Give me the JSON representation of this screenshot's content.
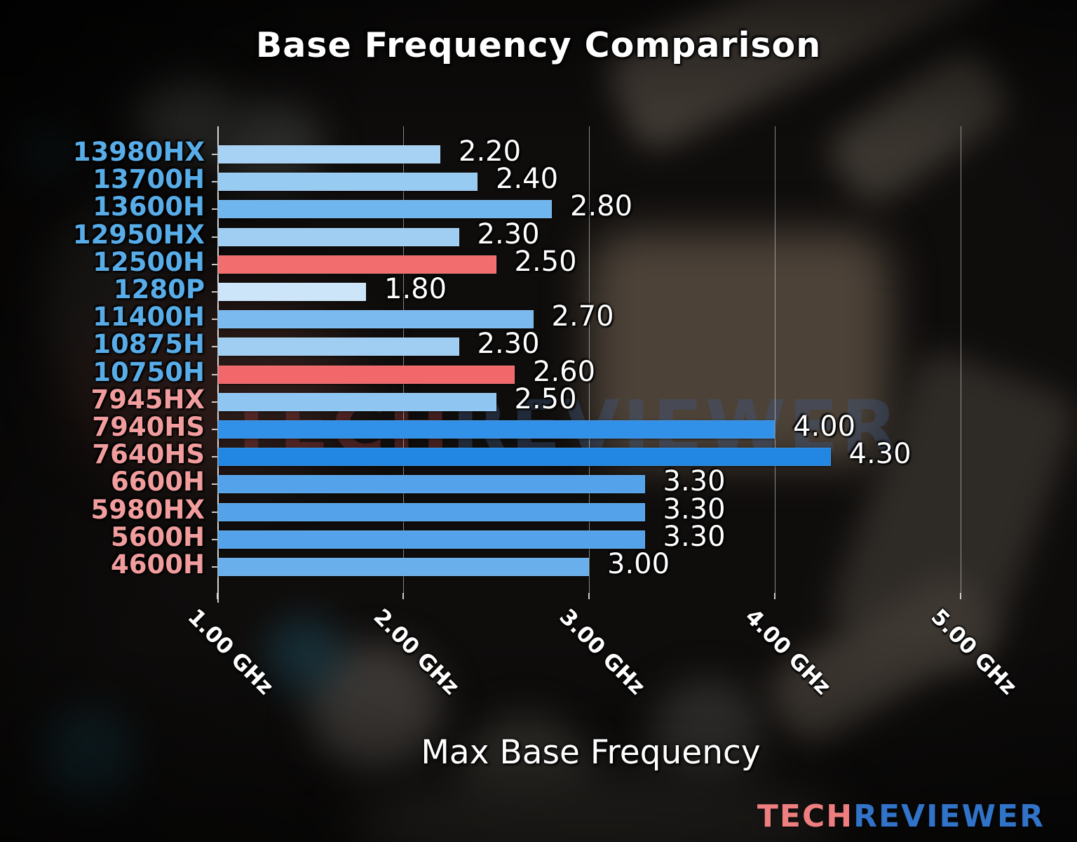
{
  "title": "Base Frequency Comparison",
  "watermark": {
    "part1": "TECH",
    "part2": "REVIEWER",
    "part1_color": "rgba(140,58,58,0.75)",
    "part2_color": "rgba(62,88,128,0.7)"
  },
  "logo": {
    "part1": "TECH",
    "part2": "REVIEWER",
    "part1_color": "#ee7e7f",
    "part2_color": "#3173c8"
  },
  "colors": {
    "value_label": "#ffffff",
    "grid": "rgba(235,235,235,0.55)",
    "intel_label": "#58ade9",
    "amd_label": "#f29d9d",
    "highlight_bar": "#f26d6e"
  },
  "chart_data": {
    "type": "bar",
    "orientation": "horizontal",
    "title": "Base Frequency Comparison",
    "xlabel": "Max Base Frequency",
    "ylabel": "",
    "xlim": [
      1.0,
      5.2
    ],
    "grid": true,
    "x_tick_values": [
      1.0,
      2.0,
      3.0,
      4.0,
      5.0
    ],
    "x_tick_labels": [
      "1.00 GHz",
      "2.00 GHz",
      "3.00 GHz",
      "4.00 GHz",
      "5.00 GHz"
    ],
    "categories": [
      "13980HX",
      "13700H",
      "13600H",
      "12950HX",
      "12500H",
      "1280P",
      "11400H",
      "10875H",
      "10750H",
      "7945HX",
      "7940HS",
      "7640HS",
      "6600H",
      "5980HX",
      "5600H",
      "4600H"
    ],
    "values": [
      2.2,
      2.4,
      2.8,
      2.3,
      2.5,
      1.8,
      2.7,
      2.3,
      2.6,
      2.5,
      4.0,
      4.3,
      3.3,
      3.3,
      3.3,
      3.0
    ],
    "value_labels": [
      "2.20",
      "2.40",
      "2.80",
      "2.30",
      "2.50",
      "1.80",
      "2.70",
      "2.30",
      "2.60",
      "2.50",
      "4.00",
      "4.30",
      "3.30",
      "3.30",
      "3.30",
      "3.00"
    ],
    "bar_colors": [
      "#a7d2f4",
      "#98cbf2",
      "#6fb5ee",
      "#a0cef3",
      "#f26d6e",
      "#cde5f9",
      "#7abaef",
      "#a0cef3",
      "#f2686a",
      "#8fc6f1",
      "#3190e8",
      "#2187e2",
      "#54a3ea",
      "#54a3ea",
      "#54a3ea",
      "#68afec"
    ],
    "category_brands": [
      "intel",
      "intel",
      "intel",
      "intel",
      "intel",
      "intel",
      "intel",
      "intel",
      "intel",
      "amd",
      "amd",
      "amd",
      "amd",
      "amd",
      "amd",
      "amd"
    ],
    "category_label_colors": {
      "intel": "#58ade9",
      "amd": "#f29d9d"
    }
  }
}
